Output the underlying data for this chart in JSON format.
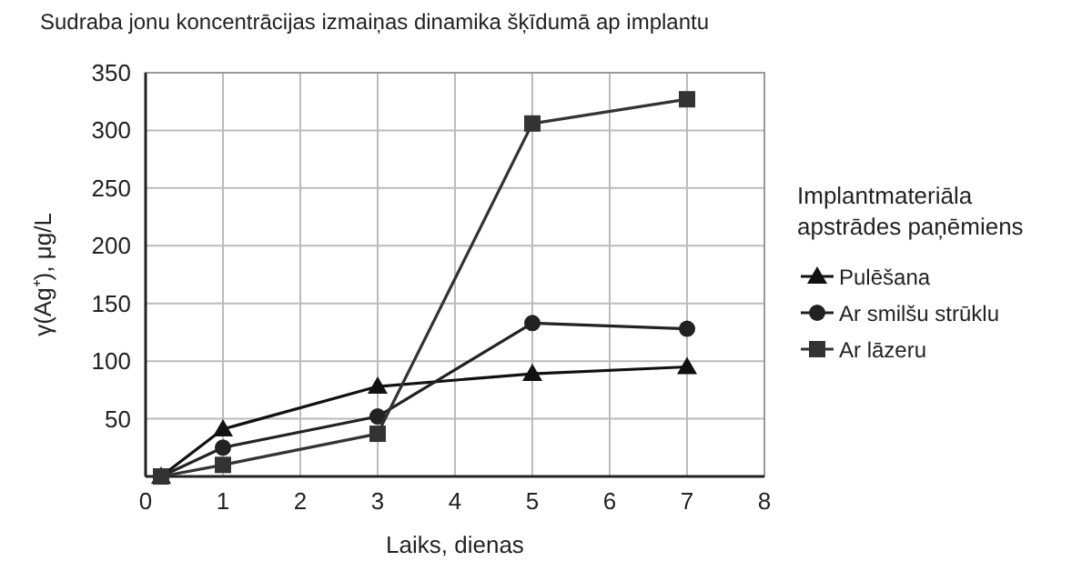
{
  "chart_data": {
    "type": "line",
    "title": "Sudraba jonu koncentrācijas izmaiņas dinamika šķīdumā ap implantu",
    "xlabel": "Laiks, dienas",
    "ylabel": "γ(Ag⁺), μg/L",
    "legend_title": "Implantmateriāla apstrādes paņēmiens",
    "x": [
      0.2,
      1,
      3,
      5,
      7
    ],
    "series": [
      {
        "name": "Pulēšana",
        "color": "#111111",
        "marker": "triangle",
        "values": [
          0,
          41,
          78,
          89,
          95
        ]
      },
      {
        "name": "Ar smilšu strūklu",
        "color": "#222222",
        "marker": "circle",
        "values": [
          0,
          25,
          52,
          133,
          128
        ]
      },
      {
        "name": "Ar lāzeru",
        "color": "#333333",
        "marker": "square",
        "values": [
          0,
          10,
          37,
          306,
          327
        ]
      }
    ],
    "xlim": [
      0,
      8
    ],
    "xticks": [
      0,
      1,
      2,
      3,
      4,
      5,
      6,
      7,
      8
    ],
    "ylim": [
      0,
      350
    ],
    "yticks": [
      {
        "value": 0,
        "label": null
      },
      50,
      100,
      150,
      200,
      250,
      300,
      350
    ],
    "grid": true,
    "legend": "right",
    "line_style": "solid"
  }
}
